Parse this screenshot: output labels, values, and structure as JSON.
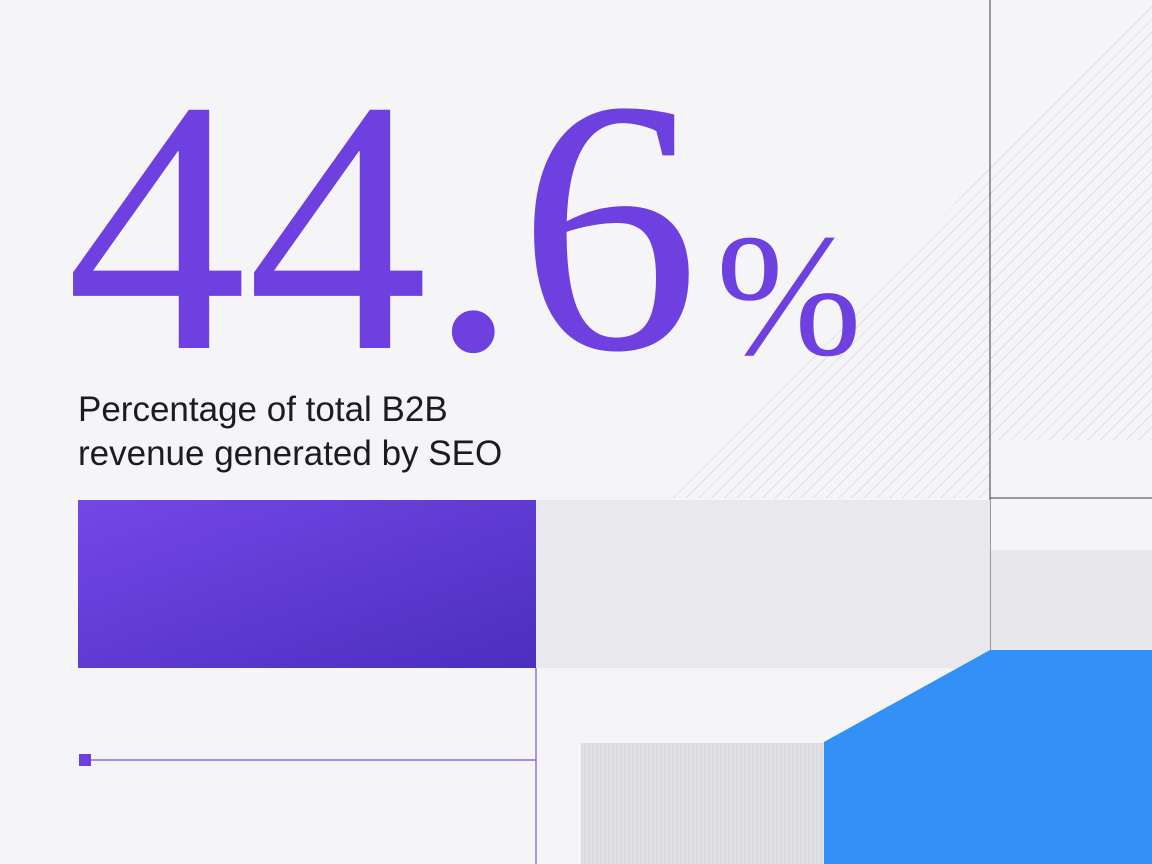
{
  "stat": {
    "number": "44.6",
    "unit": "%",
    "description": [
      "Percentage of total B2B",
      "revenue generated by SEO"
    ]
  }
}
